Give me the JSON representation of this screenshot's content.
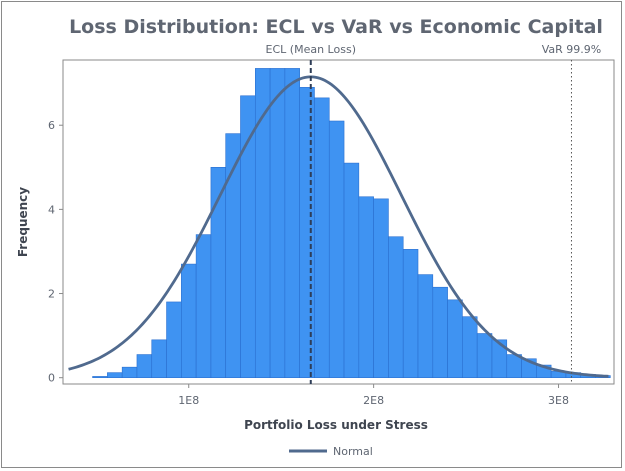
{
  "chart_data": {
    "type": "bar",
    "title": "Loss Distribution: ECL vs VaR vs Economic Capital",
    "xlabel": "Portfolio Loss under Stress",
    "ylabel": "Frequency",
    "x_tick_labels": [
      "1E8",
      "2E8",
      "3E8"
    ],
    "x_ticks": [
      100000000,
      200000000,
      300000000
    ],
    "y_ticks": [
      0,
      2,
      4,
      6
    ],
    "xlim": [
      32000000,
      330000000
    ],
    "ylim": [
      -0.15,
      7.55
    ],
    "bin_width": 8000000,
    "bins": [
      {
        "x0": 48000000,
        "y": 0.03
      },
      {
        "x0": 56000000,
        "y": 0.12
      },
      {
        "x0": 64000000,
        "y": 0.25
      },
      {
        "x0": 72000000,
        "y": 0.55
      },
      {
        "x0": 80000000,
        "y": 0.9
      },
      {
        "x0": 88000000,
        "y": 1.8
      },
      {
        "x0": 96000000,
        "y": 2.7
      },
      {
        "x0": 104000000,
        "y": 3.4
      },
      {
        "x0": 112000000,
        "y": 5.0
      },
      {
        "x0": 120000000,
        "y": 5.8
      },
      {
        "x0": 128000000,
        "y": 6.7
      },
      {
        "x0": 136000000,
        "y": 7.35
      },
      {
        "x0": 144000000,
        "y": 7.35
      },
      {
        "x0": 152000000,
        "y": 7.35
      },
      {
        "x0": 160000000,
        "y": 6.9
      },
      {
        "x0": 168000000,
        "y": 6.65
      },
      {
        "x0": 176000000,
        "y": 6.1
      },
      {
        "x0": 184000000,
        "y": 5.1
      },
      {
        "x0": 192000000,
        "y": 4.3
      },
      {
        "x0": 200000000,
        "y": 4.25
      },
      {
        "x0": 208000000,
        "y": 3.35
      },
      {
        "x0": 216000000,
        "y": 3.05
      },
      {
        "x0": 224000000,
        "y": 2.45
      },
      {
        "x0": 232000000,
        "y": 2.15
      },
      {
        "x0": 240000000,
        "y": 1.85
      },
      {
        "x0": 248000000,
        "y": 1.45
      },
      {
        "x0": 256000000,
        "y": 1.05
      },
      {
        "x0": 264000000,
        "y": 0.9
      },
      {
        "x0": 272000000,
        "y": 0.55
      },
      {
        "x0": 280000000,
        "y": 0.45
      },
      {
        "x0": 288000000,
        "y": 0.3
      },
      {
        "x0": 296000000,
        "y": 0.15
      },
      {
        "x0": 304000000,
        "y": 0.12
      },
      {
        "x0": 312000000,
        "y": 0.08
      },
      {
        "x0": 320000000,
        "y": 0.05
      }
    ],
    "normal_curve": {
      "name": "Normal",
      "mean": 166000000,
      "sd": 49000000,
      "peak": 7.15
    },
    "reference_lines": [
      {
        "label": "ECL (Mean Loss)",
        "x": 166000000,
        "style": "dashed"
      },
      {
        "label": "VaR 99.9%",
        "x": 307000000,
        "style": "dotted"
      }
    ],
    "legend": {
      "position": "bottom-center",
      "entries": [
        "Normal"
      ]
    },
    "grid": false
  },
  "colors": {
    "bar_fill": "#3f93f2",
    "bar_stroke": "#2a6fcf",
    "curve": "#506a8e",
    "ecl_line": "#2e3d57",
    "var_line": "#555555",
    "axis": "#8a8a8a"
  }
}
